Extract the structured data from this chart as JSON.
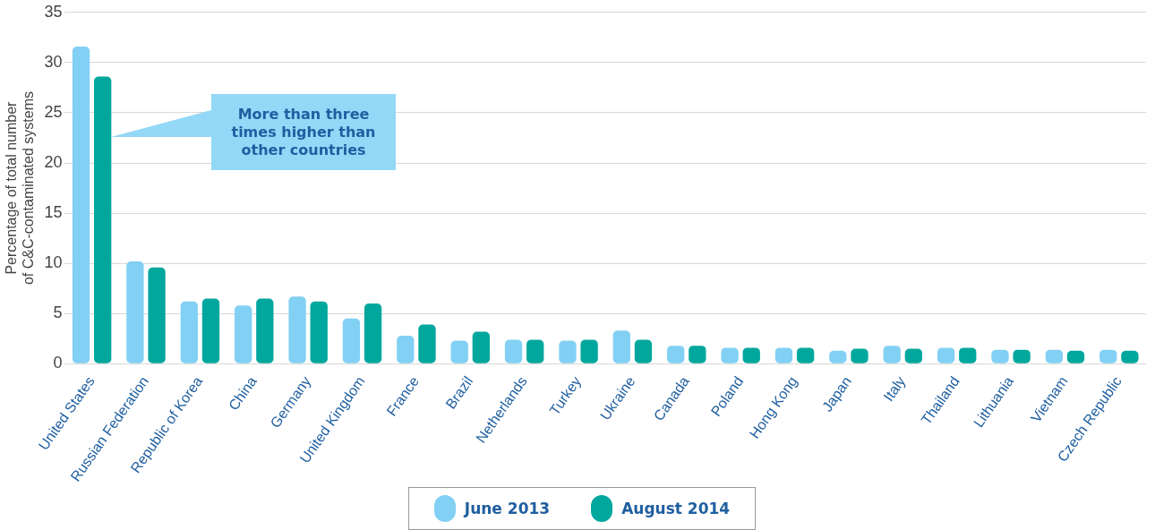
{
  "chart_data": {
    "type": "bar",
    "ylabel": "Percentage of total number of C&C-contaminated systems",
    "categories": [
      "United States",
      "Russian Federation",
      "Republic of Korea",
      "China",
      "Germany",
      "United Kingdom",
      "France",
      "Brazil",
      "Netherlands",
      "Turkey",
      "Ukraine",
      "Canada",
      "Poland",
      "Hong Kong",
      "Japan",
      "Italy",
      "Thailand",
      "Lithuania",
      "Vietnam",
      "Czech Republic"
    ],
    "series": [
      {
        "name": "June 2013",
        "color": "#82d0f4",
        "values": [
          31.6,
          10.2,
          6.2,
          5.8,
          6.7,
          4.5,
          2.8,
          2.3,
          2.4,
          2.3,
          3.3,
          1.8,
          1.6,
          1.6,
          1.3,
          1.8,
          1.6,
          1.4,
          1.4,
          1.4
        ]
      },
      {
        "name": "August 2014",
        "color": "#00a79d",
        "values": [
          28.6,
          9.6,
          6.5,
          6.5,
          6.2,
          6.0,
          3.9,
          3.2,
          2.4,
          2.4,
          2.4,
          1.8,
          1.6,
          1.6,
          1.5,
          1.5,
          1.6,
          1.4,
          1.3,
          1.3
        ]
      }
    ],
    "ylim": [
      0,
      35
    ],
    "yticks": [
      0,
      5,
      10,
      15,
      20,
      25,
      30,
      35
    ],
    "grid": "y",
    "legend": "bottom",
    "annotations": [
      "More than three times higher than other countries"
    ]
  }
}
